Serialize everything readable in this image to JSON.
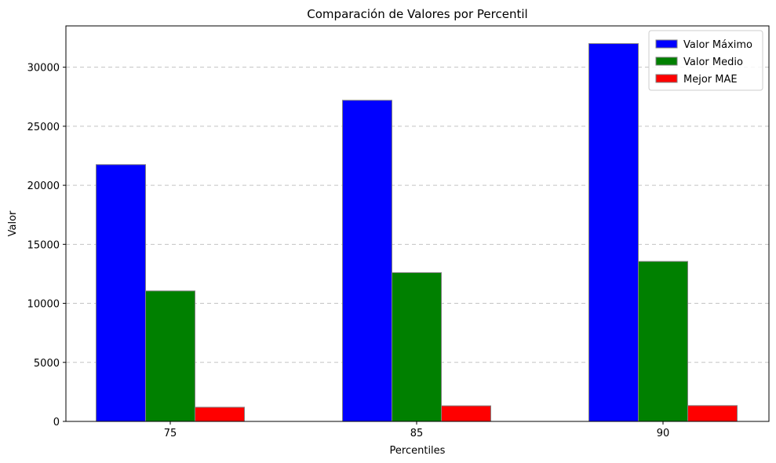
{
  "chart_data": {
    "type": "bar",
    "title": "Comparación de Valores por Percentil",
    "xlabel": "Percentiles",
    "ylabel": "Valor",
    "categories": [
      "75",
      "85",
      "90"
    ],
    "series": [
      {
        "name": "Valor Máximo",
        "color": "#0000ff",
        "values": [
          21750,
          27200,
          32000
        ]
      },
      {
        "name": "Valor Medio",
        "color": "#008000",
        "values": [
          11050,
          12600,
          13550
        ]
      },
      {
        "name": "Mejor MAE",
        "color": "#ff0000",
        "values": [
          1200,
          1320,
          1340
        ]
      }
    ],
    "ylim": [
      0,
      33500
    ],
    "yticks": [
      0,
      5000,
      10000,
      15000,
      20000,
      25000,
      30000
    ],
    "grid": "horizontal dashed",
    "legend_position": "top-right",
    "bar_edge_color": "#808080"
  }
}
